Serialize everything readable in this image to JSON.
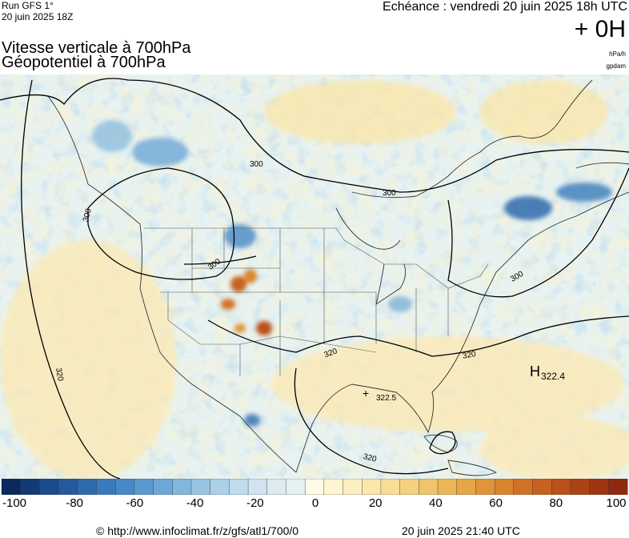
{
  "header": {
    "run_line1": "Run GFS 1°",
    "run_line2": "20 juin 2025 18Z",
    "echeance": "Echéance : vendredi 20 juin 2025 18h UTC",
    "offset": "+ 0H",
    "title_line1": "Vitesse verticale à 700hPa",
    "title_line2": "Géopotentiel à 700hPa",
    "unit_primary": "hPa/h",
    "unit_secondary": "gpdam"
  },
  "map": {
    "contour_labels": [
      "300",
      "300",
      "300",
      "300",
      "300",
      "320",
      "320",
      "320",
      "320",
      "322.5"
    ],
    "high_marker": {
      "letter": "H",
      "value": "322.4"
    },
    "colors": {
      "ocean_base": "#bfe2ec",
      "land_base": "#fdf0c2",
      "updraft": "#2f7fbf",
      "downdraft": "#e08a2a",
      "strong_downdraft": "#a83a12",
      "contour_line": "#000000"
    }
  },
  "colorbar": {
    "colors": [
      "#0a2a5e",
      "#123a75",
      "#1c4a8a",
      "#255a9c",
      "#2e6aac",
      "#3a7abb",
      "#4888c6",
      "#5b98cf",
      "#6ea7d6",
      "#82b6dd",
      "#97c4e3",
      "#abd1e8",
      "#bfdbec",
      "#cfe4ef",
      "#dcebf1",
      "#e6f1f3",
      "#fffbe6",
      "#fff5d2",
      "#fdefc0",
      "#fbe7ab",
      "#f8dd95",
      "#f4d180",
      "#efc46a",
      "#eab657",
      "#e5a647",
      "#e0953a",
      "#d9842f",
      "#d07226",
      "#c6611f",
      "#bb501a",
      "#ad4216",
      "#9e3513",
      "#8e2a11"
    ],
    "tick_labels": [
      {
        "label": "-100",
        "value": -100
      },
      {
        "label": "-80",
        "value": -80
      },
      {
        "label": "-60",
        "value": -60
      },
      {
        "label": "-40",
        "value": -40
      },
      {
        "label": "-20",
        "value": -20
      },
      {
        "label": "0",
        "value": 0
      },
      {
        "label": "20",
        "value": 20
      },
      {
        "label": "40",
        "value": 40
      },
      {
        "label": "60",
        "value": 60
      },
      {
        "label": "80",
        "value": 80
      },
      {
        "label": "100",
        "value": 100
      }
    ],
    "range": [
      -100,
      100
    ]
  },
  "footer": {
    "copyright": "© http://www.infoclimat.fr/z/gfs/atl1/700/0",
    "generated": "20 juin 2025 21:40 UTC"
  }
}
